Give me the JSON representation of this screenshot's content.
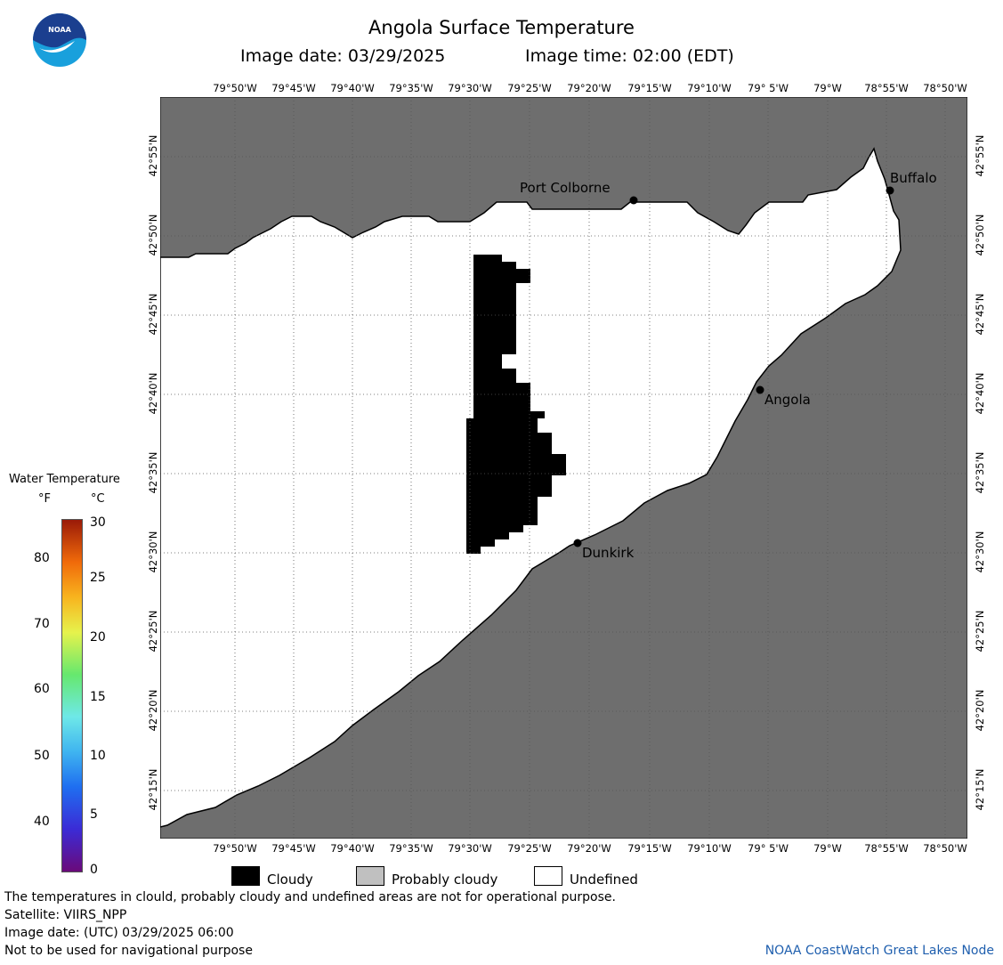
{
  "header": {
    "title": "Angola Surface Temperature",
    "image_date": "Image date: 03/29/2025",
    "image_time": "Image time: 02:00 (EDT)"
  },
  "logo": {
    "text": "NOAA",
    "colors": {
      "top": "#1b3f8f",
      "bottom": "#19a0dc"
    }
  },
  "map": {
    "colors": {
      "land": "#6e6e6e",
      "water": "#ffffff",
      "cloud": "#000000",
      "grid": "#555555"
    },
    "lon_labels": [
      "79°50'W",
      "79°45'W",
      "79°40'W",
      "79°35'W",
      "79°30'W",
      "79°25'W",
      "79°20'W",
      "79°15'W",
      "79°10'W",
      "79° 5'W",
      "79°W",
      "78°55'W",
      "78°50'W"
    ],
    "lat_labels": [
      "42°55'N",
      "42°50'N",
      "42°45'N",
      "42°40'N",
      "42°35'N",
      "42°30'N",
      "42°25'N",
      "42°20'N",
      "42°15'N"
    ],
    "cities": [
      {
        "name": "Port Colborne"
      },
      {
        "name": "Buffalo"
      },
      {
        "name": "Angola"
      },
      {
        "name": "Dunkirk"
      }
    ]
  },
  "colorbar": {
    "title": "Water Temperature",
    "unit_f": "°F",
    "unit_c": "°C",
    "f_ticks": [
      "80",
      "70",
      "60",
      "50",
      "40"
    ],
    "c_ticks": [
      "30",
      "25",
      "20",
      "15",
      "10",
      "5",
      "0"
    ]
  },
  "legend": {
    "items": [
      {
        "label": "Cloudy",
        "color": "#000000"
      },
      {
        "label": "Probably cloudy",
        "color": "#c0c0c0"
      },
      {
        "label": "Undefined",
        "color": "#ffffff"
      }
    ]
  },
  "footer": {
    "line1": "The temperatures in clould, probably cloudy and undefined areas are not for operational purpose.",
    "line2": "Satellite: VIIRS_NPP",
    "line3": "Image date: (UTC) 03/29/2025  06:00",
    "line4": "Not to be used for navigational purpose",
    "credit": "NOAA CoastWatch Great Lakes Node"
  }
}
